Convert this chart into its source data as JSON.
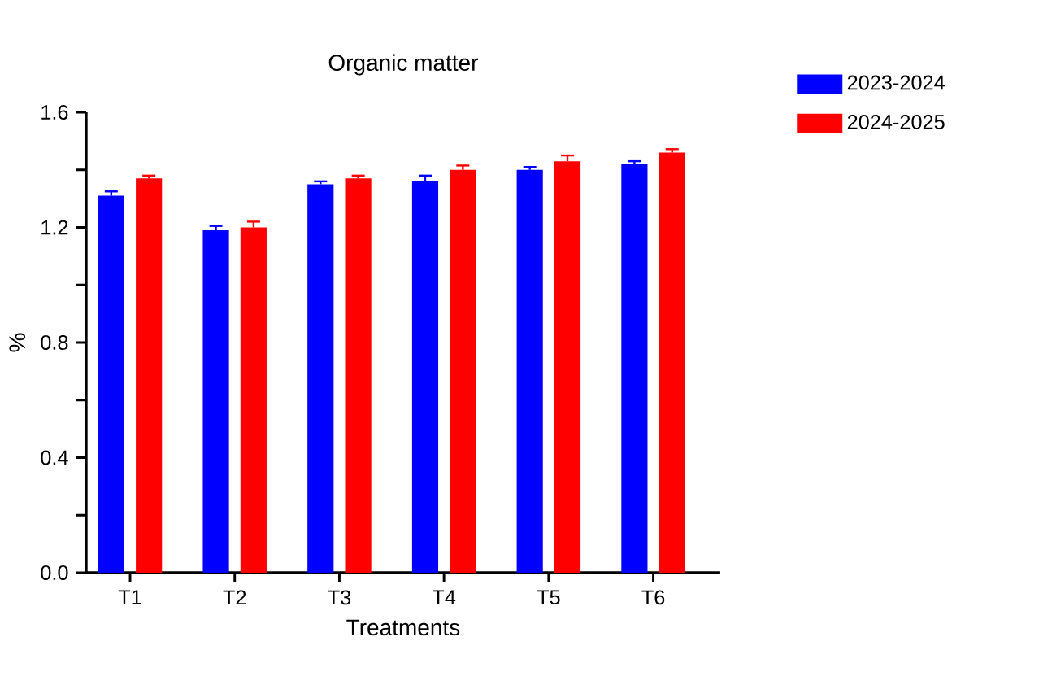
{
  "chart_data": {
    "type": "bar",
    "title": "Organic matter",
    "xlabel": "Treatments",
    "ylabel": "%",
    "categories": [
      "T1",
      "T2",
      "T3",
      "T4",
      "T5",
      "T6"
    ],
    "series": [
      {
        "name": "2023-2024",
        "color": "#0000ff",
        "values": [
          1.31,
          1.19,
          1.35,
          1.36,
          1.4,
          1.42
        ],
        "errors": [
          0.015,
          0.015,
          0.01,
          0.02,
          0.01,
          0.01
        ]
      },
      {
        "name": "2024-2025",
        "color": "#ff0000",
        "values": [
          1.37,
          1.2,
          1.37,
          1.4,
          1.43,
          1.46
        ],
        "errors": [
          0.01,
          0.02,
          0.01,
          0.015,
          0.02,
          0.012
        ]
      }
    ],
    "ylim": [
      0,
      1.6
    ],
    "yticks": [
      {
        "value": 0,
        "label": "0.0"
      },
      {
        "value": 0.2,
        "label": null
      },
      0.4,
      {
        "value": 0.6,
        "label": null
      },
      0.8,
      {
        "value": 1.0,
        "label": null
      },
      1.2,
      {
        "value": 1.4,
        "label": null
      },
      1.6
    ],
    "legend": "top right",
    "grid": false
  }
}
